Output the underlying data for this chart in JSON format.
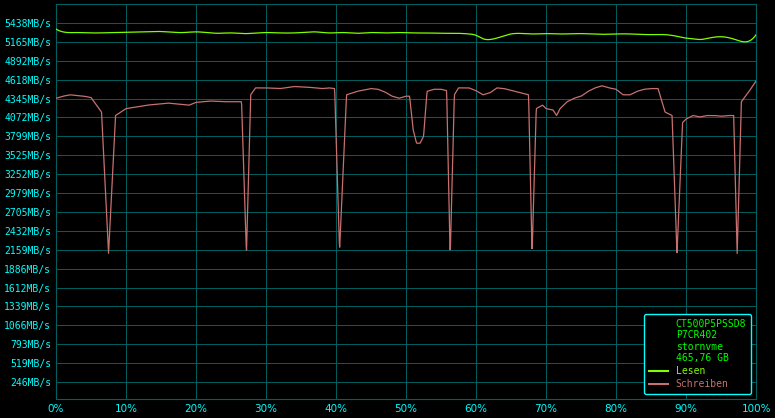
{
  "background_color": "#000000",
  "plot_bg_color": "#000000",
  "grid_color": "#006060",
  "tick_label_color": "#00ffff",
  "legend_bg_color": "#000000",
  "legend_border_color": "#00ffff",
  "read_color": "#80ff00",
  "write_color": "#c87070",
  "ylabel_ticks": [
    "246MB/s",
    "519MB/s",
    "793MB/s",
    "1066MB/s",
    "1339MB/s",
    "1612MB/s",
    "1886MB/s",
    "2159MB/s",
    "2432MB/s",
    "2705MB/s",
    "2979MB/s",
    "3252MB/s",
    "3525MB/s",
    "3799MB/s",
    "4072MB/s",
    "4345MB/s",
    "4618MB/s",
    "4892MB/s",
    "5165MB/s",
    "5438MB/s"
  ],
  "ylabel_values": [
    246,
    519,
    793,
    1066,
    1339,
    1612,
    1886,
    2159,
    2432,
    2705,
    2979,
    3252,
    3525,
    3799,
    4072,
    4345,
    4618,
    4892,
    5165,
    5438
  ],
  "xlabel_ticks": [
    "0%",
    "10%",
    "20%",
    "30%",
    "40%",
    "50%",
    "60%",
    "70%",
    "80%",
    "90%",
    "100%"
  ],
  "xlabel_values": [
    0,
    10,
    20,
    30,
    40,
    50,
    60,
    70,
    80,
    90,
    100
  ],
  "ymin": 0,
  "ymax": 5711,
  "legend_info": "CT500P5PSSD8\nP7CR402\nstornvme\n465,76 GB",
  "legend_read": "Lesen",
  "legend_write": "Schreiben",
  "figsize": [
    7.75,
    4.18
  ],
  "dpi": 100
}
